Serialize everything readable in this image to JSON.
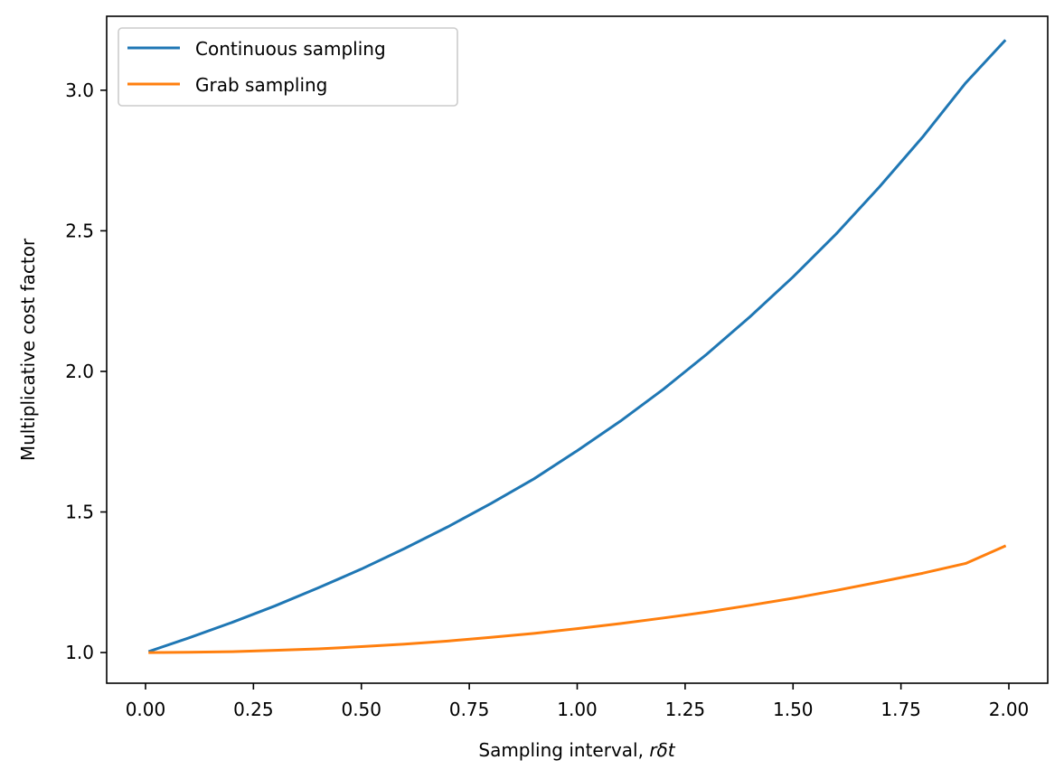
{
  "chart_data": {
    "type": "line",
    "xlabel": "Sampling interval, ",
    "xlabel_math": "rδt",
    "ylabel": "Multiplicative cost factor",
    "xlim": [
      -0.09,
      2.09
    ],
    "ylim": [
      0.891,
      3.263
    ],
    "xticks": [
      0.0,
      0.25,
      0.5,
      0.75,
      1.0,
      1.25,
      1.5,
      1.75,
      2.0
    ],
    "xtick_labels": [
      "0.00",
      "0.25",
      "0.50",
      "0.75",
      "1.00",
      "1.25",
      "1.50",
      "1.75",
      "2.00"
    ],
    "yticks": [
      1.0,
      1.5,
      2.0,
      2.5,
      3.0
    ],
    "ytick_labels": [
      "1.0",
      "1.5",
      "2.0",
      "2.5",
      "3.0"
    ],
    "grid": false,
    "legend_position": "top-left",
    "x": [
      0.01,
      0.1,
      0.2,
      0.3,
      0.4,
      0.5,
      0.6,
      0.7,
      0.8,
      0.9,
      1.0,
      1.1,
      1.2,
      1.3,
      1.4,
      1.5,
      1.6,
      1.7,
      1.8,
      1.9,
      1.99
    ],
    "series": [
      {
        "name": "Continuous sampling",
        "color": "#1f77b4",
        "values": [
          1.005,
          1.052,
          1.107,
          1.166,
          1.23,
          1.297,
          1.37,
          1.447,
          1.53,
          1.618,
          1.718,
          1.823,
          1.937,
          2.061,
          2.194,
          2.336,
          2.489,
          2.656,
          2.833,
          3.026,
          3.175
        ]
      },
      {
        "name": "Grab sampling",
        "color": "#ff7f0e",
        "values": [
          1.0,
          1.001,
          1.003,
          1.008,
          1.013,
          1.021,
          1.03,
          1.041,
          1.054,
          1.068,
          1.085,
          1.103,
          1.123,
          1.144,
          1.168,
          1.193,
          1.221,
          1.251,
          1.282,
          1.317,
          1.378
        ]
      }
    ]
  }
}
